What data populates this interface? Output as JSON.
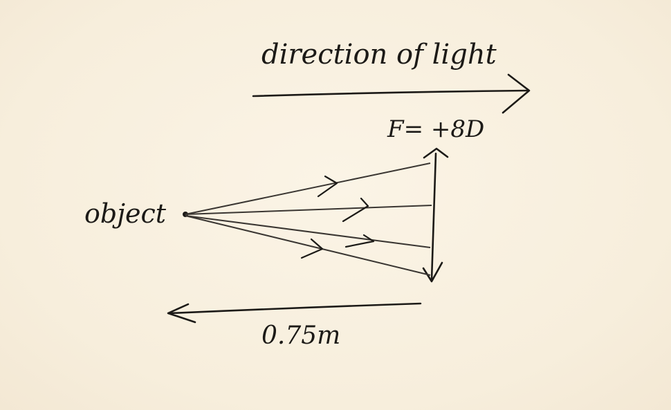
{
  "labels": {
    "direction_text": "direction of light",
    "power_text": "F= +8D",
    "object_text": "object",
    "distance_text": "0.75m"
  },
  "colors": {
    "background": "#f8f0e0",
    "ink": "#1c1a17"
  }
}
